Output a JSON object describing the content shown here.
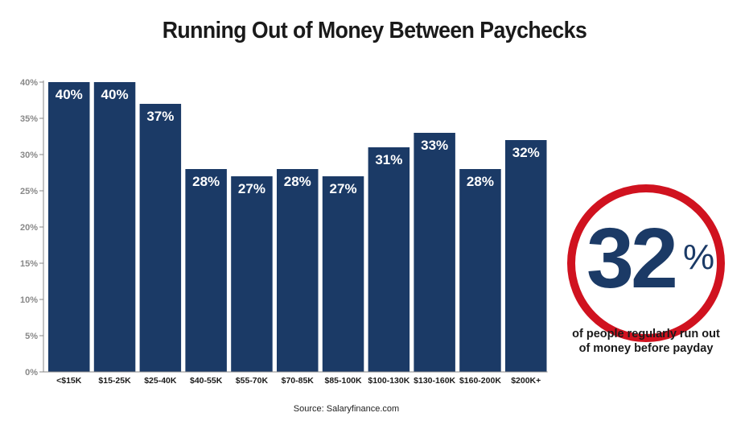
{
  "title": "Running Out of Money Between Paychecks",
  "callout": {
    "value": "32",
    "unit": "%",
    "caption_line1": "of people regularly run out",
    "caption_line2": "of money before payday"
  },
  "source": "Source: Salaryfinance.com",
  "colors": {
    "bar": "#1b3a66",
    "ring": "#d0121f",
    "axis": "#888888",
    "tick_text": "#888888"
  },
  "chart_data": {
    "type": "bar",
    "title": "Running Out of Money Between Paychecks",
    "xlabel": "",
    "ylabel": "",
    "categories": [
      "<$15K",
      "$15-25K",
      "$25-40K",
      "$40-55K",
      "$55-70K",
      "$70-85K",
      "$85-100K",
      "$100-130K",
      "$130-160K",
      "$160-200K",
      "$200K+"
    ],
    "values": [
      40,
      40,
      37,
      28,
      27,
      28,
      27,
      31,
      33,
      28,
      32
    ],
    "data_labels": [
      "40%",
      "40%",
      "37%",
      "28%",
      "27%",
      "28%",
      "27%",
      "31%",
      "33%",
      "28%",
      "32%"
    ],
    "ylim": [
      0,
      40
    ],
    "yticks": [
      "0%",
      "5%",
      "10%",
      "15%",
      "20%",
      "25%",
      "30%",
      "35%",
      "40%"
    ],
    "grid": false,
    "legend": "none"
  }
}
